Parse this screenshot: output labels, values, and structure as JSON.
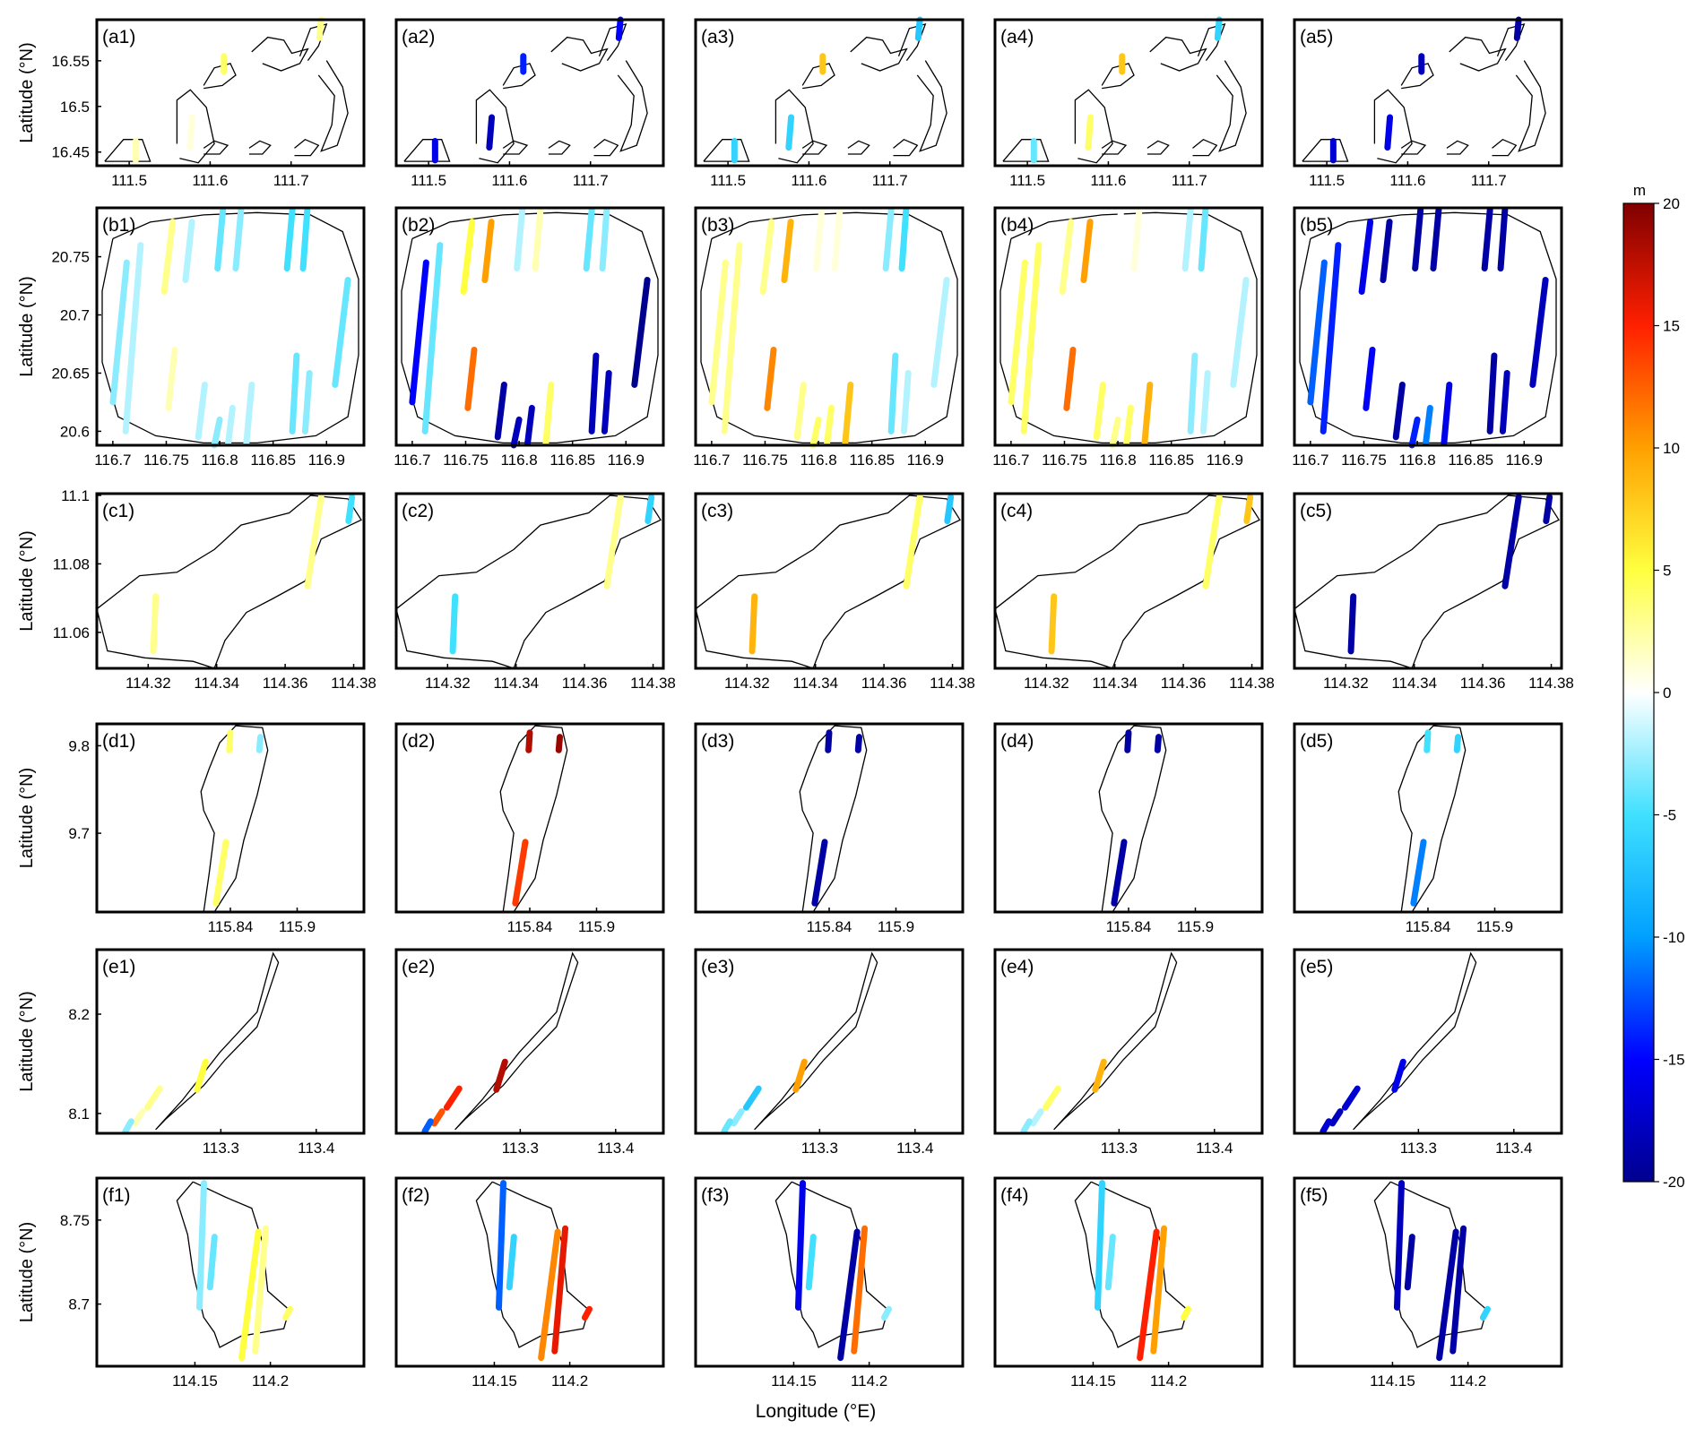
{
  "x_axis_label": "Longitude (°E)",
  "y_axis_label": "Latitude (°N)",
  "colorbar": {
    "unit": "m",
    "min": -20,
    "max": 20,
    "ticks": [
      20,
      15,
      10,
      5,
      0,
      -5,
      -10,
      -15,
      -20
    ],
    "colormap": "jet",
    "colors": [
      "#00008f",
      "#0000ff",
      "#00a0ff",
      "#40e0ff",
      "#ffffff",
      "#ffff40",
      "#ffa000",
      "#ff2000",
      "#800000"
    ]
  },
  "chart_data": [
    {
      "row": "a",
      "type": "scatter",
      "panels": [
        "(a1)",
        "(a2)",
        "(a3)",
        "(a4)",
        "(a5)"
      ],
      "xlim": [
        111.46,
        111.79
      ],
      "ylim": [
        16.435,
        16.595
      ],
      "xticks": [
        111.5,
        111.6,
        111.7
      ],
      "yticks": [
        16.55,
        16.5,
        16.45
      ],
      "xtick_labels": [
        "111.5",
        "111.6",
        "111.7"
      ],
      "ytick_labels": [
        "16.55",
        "16.5",
        "16.45"
      ],
      "tracks": [
        {
          "x0": 111.508,
          "y0": 16.441,
          "x1": 111.508,
          "y1": 16.462,
          "values": [
            2,
            -16,
            -6,
            -4,
            -17
          ]
        },
        {
          "x0": 111.575,
          "y0": 16.455,
          "x1": 111.578,
          "y1": 16.488,
          "values": [
            1,
            -18,
            -6,
            4,
            -16
          ]
        },
        {
          "x0": 111.617,
          "y0": 16.538,
          "x1": 111.617,
          "y1": 16.555,
          "values": [
            4,
            -14,
            8,
            8,
            -18
          ]
        },
        {
          "x0": 111.735,
          "y0": 16.575,
          "x1": 111.737,
          "y1": 16.595,
          "values": [
            3,
            -15,
            -7,
            -6,
            -19
          ]
        }
      ]
    },
    {
      "row": "b",
      "type": "scatter",
      "panels": [
        "(b1)",
        "(b2)",
        "(b3)",
        "(b4)",
        "(b5)"
      ],
      "xlim": [
        116.685,
        116.935
      ],
      "ylim": [
        20.588,
        20.792
      ],
      "xticks": [
        116.7,
        116.75,
        116.8,
        116.85,
        116.9
      ],
      "yticks": [
        20.75,
        20.7,
        20.65,
        20.6
      ],
      "xtick_labels": [
        "116.7",
        "116.75",
        "116.8",
        "116.85",
        "116.9"
      ],
      "ytick_labels": [
        "20.75",
        "20.7",
        "20.65",
        "20.6"
      ],
      "tracks": [
        {
          "x0": 116.7,
          "y0": 20.625,
          "x1": 116.713,
          "y1": 20.745,
          "values": [
            -3,
            -15,
            3,
            4,
            -12
          ]
        },
        {
          "x0": 116.712,
          "y0": 20.6,
          "x1": 116.726,
          "y1": 20.76,
          "values": [
            -2,
            -4,
            3,
            4,
            -14
          ]
        },
        {
          "x0": 116.752,
          "y0": 20.62,
          "x1": 116.758,
          "y1": 20.67,
          "values": [
            2,
            12,
            11,
            12,
            -15
          ]
        },
        {
          "x0": 116.748,
          "y0": 20.72,
          "x1": 116.756,
          "y1": 20.78,
          "values": [
            3,
            5,
            3,
            3,
            -16
          ]
        },
        {
          "x0": 116.768,
          "y0": 20.73,
          "x1": 116.774,
          "y1": 20.78,
          "values": [
            -2,
            10,
            9,
            10,
            -19
          ]
        },
        {
          "x0": 116.78,
          "y0": 20.595,
          "x1": 116.786,
          "y1": 20.64,
          "values": [
            -2,
            -19,
            3,
            4,
            -19
          ]
        },
        {
          "x0": 116.795,
          "y0": 20.588,
          "x1": 116.8,
          "y1": 20.61,
          "values": [
            -3,
            -18,
            4,
            3,
            -14
          ]
        },
        {
          "x0": 116.798,
          "y0": 20.74,
          "x1": 116.803,
          "y1": 20.79,
          "values": [
            -4,
            -2,
            1,
            0,
            -19
          ]
        },
        {
          "x0": 116.808,
          "y0": 20.59,
          "x1": 116.812,
          "y1": 20.62,
          "values": [
            -2,
            -18,
            4,
            4,
            -11
          ]
        },
        {
          "x0": 116.815,
          "y0": 20.74,
          "x1": 116.82,
          "y1": 20.79,
          "values": [
            -3,
            2,
            1,
            1,
            -19
          ]
        },
        {
          "x0": 116.825,
          "y0": 20.59,
          "x1": 116.83,
          "y1": 20.64,
          "values": [
            -2,
            4,
            8,
            9,
            -16
          ]
        },
        {
          "x0": 116.863,
          "y0": 20.74,
          "x1": 116.868,
          "y1": 20.79,
          "values": [
            -5,
            -4,
            -3,
            -2,
            -19
          ]
        },
        {
          "x0": 116.868,
          "y0": 20.6,
          "x1": 116.872,
          "y1": 20.665,
          "values": [
            -4,
            -18,
            -4,
            -3,
            -19
          ]
        },
        {
          "x0": 116.878,
          "y0": 20.74,
          "x1": 116.882,
          "y1": 20.79,
          "values": [
            -5,
            -3,
            -5,
            -4,
            -19
          ]
        },
        {
          "x0": 116.88,
          "y0": 20.6,
          "x1": 116.884,
          "y1": 20.65,
          "values": [
            -3,
            -18,
            -2,
            -2,
            -18
          ]
        },
        {
          "x0": 116.908,
          "y0": 20.64,
          "x1": 116.92,
          "y1": 20.73,
          "values": [
            -4,
            -20,
            -2,
            -2,
            -18
          ]
        }
      ]
    },
    {
      "row": "c",
      "type": "scatter",
      "panels": [
        "(c1)",
        "(c2)",
        "(c3)",
        "(c4)",
        "(c5)"
      ],
      "xlim": [
        114.305,
        114.383
      ],
      "ylim": [
        11.0495,
        11.1005
      ],
      "xticks": [
        114.32,
        114.34,
        114.36,
        114.38
      ],
      "yticks": [
        11.1,
        11.08,
        11.06
      ],
      "xtick_labels": [
        "114.32",
        "114.34",
        "114.36",
        "114.38"
      ],
      "ytick_labels": [
        "11.1",
        "11.08",
        "11.06"
      ],
      "tracks": [
        {
          "x0": 114.3215,
          "y0": 11.0545,
          "x1": 114.3222,
          "y1": 11.0705,
          "values": [
            3,
            -5,
            9,
            8,
            -19
          ]
        },
        {
          "x0": 114.3665,
          "y0": 11.0735,
          "x1": 114.3705,
          "y1": 11.0995,
          "values": [
            3,
            3,
            4,
            4,
            -19
          ]
        },
        {
          "x0": 114.3785,
          "y0": 11.0925,
          "x1": 114.3795,
          "y1": 11.0995,
          "values": [
            -5,
            -6,
            -7,
            8,
            -19
          ]
        }
      ]
    },
    {
      "row": "d",
      "type": "scatter",
      "panels": [
        "(d1)",
        "(d2)",
        "(d3)",
        "(d4)",
        "(d5)"
      ],
      "xlim": [
        115.72,
        115.96
      ],
      "ylim": [
        9.61,
        9.825
      ],
      "xticks": [
        115.84,
        115.9
      ],
      "yticks": [
        9.8,
        9.7
      ],
      "xtick_labels": [
        "115.84",
        "115.9"
      ],
      "ytick_labels": [
        "9.8",
        "9.7"
      ],
      "tracks": [
        {
          "x0": 115.827,
          "y0": 9.62,
          "x1": 115.836,
          "y1": 9.69,
          "values": [
            4,
            14,
            -19,
            -19,
            -11
          ]
        },
        {
          "x0": 115.839,
          "y0": 9.795,
          "x1": 115.84,
          "y1": 9.815,
          "values": [
            4,
            18,
            -19,
            -19,
            -5
          ]
        },
        {
          "x0": 115.866,
          "y0": 9.795,
          "x1": 115.867,
          "y1": 9.81,
          "values": [
            -3,
            19,
            -19,
            -19,
            -6
          ]
        }
      ]
    },
    {
      "row": "e",
      "type": "scatter",
      "panels": [
        "(e1)",
        "(e2)",
        "(e3)",
        "(e4)",
        "(e5)"
      ],
      "xlim": [
        113.17,
        113.45
      ],
      "ylim": [
        8.08,
        8.265
      ],
      "xticks": [
        113.3,
        113.4
      ],
      "yticks": [
        8.2,
        8.1
      ],
      "xtick_labels": [
        "113.3",
        "113.4"
      ],
      "ytick_labels": [
        "8.2",
        "8.1"
      ],
      "tracks": [
        {
          "x0": 113.275,
          "y0": 8.124,
          "x1": 113.284,
          "y1": 8.152,
          "values": [
            5,
            18,
            10,
            9,
            -16
          ]
        },
        {
          "x0": 113.223,
          "y0": 8.106,
          "x1": 113.236,
          "y1": 8.125,
          "values": [
            3,
            15,
            -7,
            4,
            -17
          ]
        },
        {
          "x0": 113.21,
          "y0": 8.09,
          "x1": 113.218,
          "y1": 8.102,
          "values": [
            2,
            13,
            -3,
            -2,
            -18
          ]
        },
        {
          "x0": 113.2,
          "y0": 8.082,
          "x1": 113.206,
          "y1": 8.092,
          "values": [
            -3,
            -12,
            -4,
            -3,
            -17
          ]
        }
      ]
    },
    {
      "row": "f",
      "type": "scatter",
      "panels": [
        "(f1)",
        "(f2)",
        "(f3)",
        "(f4)",
        "(f5)"
      ],
      "xlim": [
        114.085,
        114.262
      ],
      "ylim": [
        8.663,
        8.775
      ],
      "xticks": [
        114.15,
        114.2
      ],
      "yticks": [
        8.75,
        8.7
      ],
      "xtick_labels": [
        "114.15",
        "114.2"
      ],
      "ytick_labels": [
        "8.75",
        "8.7"
      ],
      "tracks": [
        {
          "x0": 114.153,
          "y0": 8.698,
          "x1": 114.156,
          "y1": 8.772,
          "values": [
            -3,
            -12,
            -16,
            -6,
            -18
          ]
        },
        {
          "x0": 114.16,
          "y0": 8.71,
          "x1": 114.163,
          "y1": 8.74,
          "values": [
            -4,
            -6,
            -5,
            -4,
            -19
          ]
        },
        {
          "x0": 114.181,
          "y0": 8.668,
          "x1": 114.192,
          "y1": 8.743,
          "values": [
            5,
            11,
            -19,
            15,
            -19
          ]
        },
        {
          "x0": 114.19,
          "y0": 8.672,
          "x1": 114.197,
          "y1": 8.745,
          "values": [
            3,
            16,
            12,
            10,
            -19
          ]
        },
        {
          "x0": 114.21,
          "y0": 8.692,
          "x1": 114.213,
          "y1": 8.697,
          "values": [
            4,
            15,
            -3,
            5,
            -6
          ]
        }
      ]
    }
  ]
}
